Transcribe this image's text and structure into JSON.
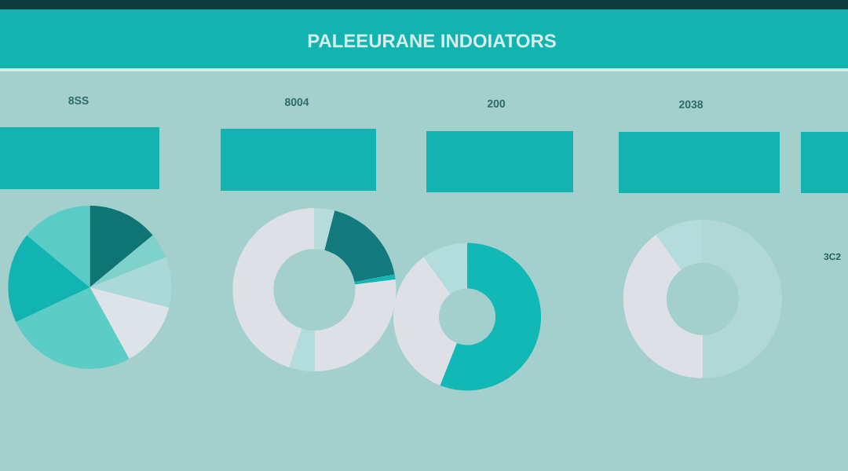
{
  "chart_data": [
    {
      "type": "pie",
      "title": "PALEEURANE INDOIATORS",
      "subtitle": "8SS",
      "categories": [
        null,
        null,
        null,
        null,
        null,
        null,
        null
      ],
      "values": [
        14,
        5,
        10,
        13,
        26,
        18,
        14
      ],
      "colors": [
        "#0f7474",
        "#7fd1cc",
        "#a9d9d9",
        "#dee3e8",
        "#5bccc6",
        "#12b4b2",
        "#5acbc5"
      ]
    },
    {
      "type": "donut",
      "subtitle": "8004",
      "categories": [
        null,
        null,
        null,
        null,
        null,
        null
      ],
      "values": [
        4,
        18,
        1,
        27,
        5,
        45
      ],
      "colors": [
        "#b6dcdc",
        "#137a7e",
        "#12b6b4",
        "#dde1e6",
        "#b3dcdc",
        "#dde1e6"
      ]
    },
    {
      "type": "donut",
      "subtitle": "200",
      "categories": [
        null,
        null,
        null
      ],
      "values": [
        56,
        34,
        10
      ],
      "colors": [
        "#11b8b5",
        "#dde1e6",
        "#b3dcdc"
      ]
    },
    {
      "type": "donut",
      "subtitle": "2038",
      "categories": [
        null,
        null,
        null
      ],
      "values": [
        50,
        40,
        10
      ],
      "colors": [
        "#b2d8d5",
        "#dde1e6",
        "#b5dcdc"
      ],
      "annotations": [
        "3C2"
      ]
    }
  ]
}
